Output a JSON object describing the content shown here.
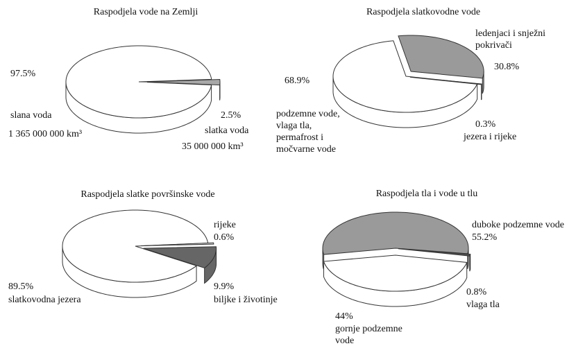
{
  "chart_data": [
    {
      "type": "pie",
      "title": "Raspodjela vode na Zemlji",
      "categories": [
        "slana voda",
        "slatka voda"
      ],
      "values": [
        97.5,
        2.5
      ],
      "value_labels": [
        "97.5%",
        "2.5%"
      ],
      "annotations": [
        "1 365 000 000 km³",
        "35 000 000 km³"
      ],
      "colors": [
        "#ffffff",
        "#a8a8a8"
      ]
    },
    {
      "type": "pie",
      "title": "Raspodjela slatkovodne vode",
      "categories": [
        "podzemne vode,\nvlaga tla,\npermafrost i\nmočvarne vode",
        "ledenjaci i snježni\npokrivači",
        "jezera i rijeke"
      ],
      "values": [
        68.9,
        30.8,
        0.3
      ],
      "value_labels": [
        "68.9%",
        "30.8%",
        "0.3%"
      ],
      "colors": [
        "#ffffff",
        "#9a9a9a",
        "#555555"
      ]
    },
    {
      "type": "pie",
      "title": "Raspodjela slatke površinske vode",
      "categories": [
        "slatkovodna jezera",
        "rijeke",
        "biljke i životinje"
      ],
      "values": [
        89.5,
        0.6,
        9.9
      ],
      "value_labels": [
        "89.5%",
        "0.6%",
        "9.9%"
      ],
      "colors": [
        "#ffffff",
        "#dddddd",
        "#666666"
      ]
    },
    {
      "type": "pie",
      "title": "Raspodjela tla i vode u tlu",
      "categories": [
        "duboke podzemne vode",
        "vlaga tla",
        "gornje podzemne\nvode"
      ],
      "values": [
        55.2,
        0.8,
        44
      ],
      "value_labels": [
        "55.2%",
        "0.8%",
        "44%"
      ],
      "colors": [
        "#9a9a9a",
        "#555555",
        "#ffffff"
      ]
    }
  ]
}
